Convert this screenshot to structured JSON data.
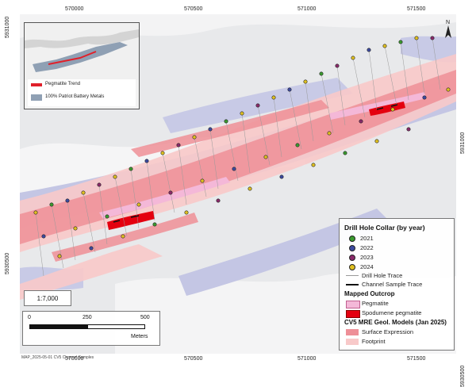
{
  "map": {
    "credit": "MAP_2025-05-01 CV5 Channel Samples",
    "scale_ratio": "1:7,000",
    "scale_ticks": [
      "0",
      "250",
      "500"
    ],
    "scale_unit": "Meters",
    "coords_top": [
      "570000",
      "570500",
      "571000",
      "571500"
    ],
    "coords_bottom": [
      "570000",
      "570500",
      "571000",
      "571500"
    ],
    "coords_left": [
      "5931000",
      "5930500"
    ],
    "coords_right": [
      "5931000",
      "5930500"
    ],
    "north_label": "N"
  },
  "inset": {
    "legend": [
      {
        "label": "Pegmatite Trend",
        "color": "#e0202a"
      },
      {
        "label": "100% Patriot Battery Metals",
        "color": "#8fa0b4"
      }
    ]
  },
  "legend": {
    "collar_title": "Drill Hole Collar (by year)",
    "years": [
      {
        "label": "2021",
        "color": "#3a9a2e"
      },
      {
        "label": "2022",
        "color": "#3c4aa0"
      },
      {
        "label": "2023",
        "color": "#8a2a6a"
      },
      {
        "label": "2024",
        "color": "#e0c020"
      }
    ],
    "drill_trace": "Drill Hole Trace",
    "channel_trace": "Channel Sample Trace",
    "outcrop_title": "Mapped Outcrop",
    "pegmatite": "Pegmatite",
    "spodumene": "Spodumene pegmatite",
    "model_title": "CV5 MRE Geol. Models (Jan 2025)",
    "surface": "Surface Expression",
    "footprint": "Footprint",
    "colors": {
      "pegmatite": "#f4b8d8",
      "spodumene": "#e4000f",
      "surface": "#ee8f97",
      "footprint": "#f8c9c9"
    }
  }
}
